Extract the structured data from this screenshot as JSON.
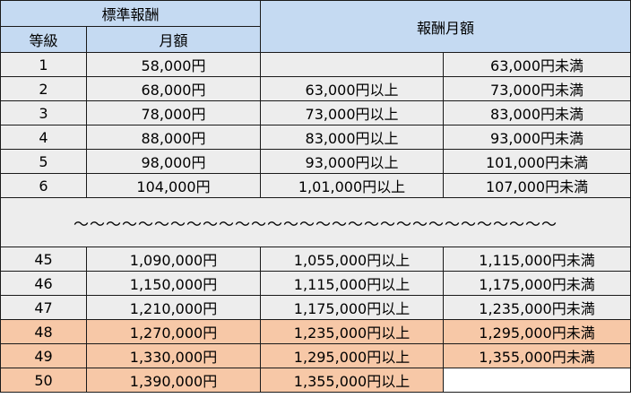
{
  "header": {
    "standard_pay": "標準報酬",
    "monthly_pay_range": "報酬月額",
    "grade": "等級",
    "monthly_amount": "月額"
  },
  "rows_top": [
    {
      "grade": "1",
      "amount": "58,000円",
      "from": "",
      "to": "63,000円未満"
    },
    {
      "grade": "2",
      "amount": "68,000円",
      "from": "63,000円以上",
      "to": "73,000円未満"
    },
    {
      "grade": "3",
      "amount": "78,000円",
      "from": "73,000円以上",
      "to": "83,000円未満"
    },
    {
      "grade": "4",
      "amount": "88,000円",
      "from": "83,000円以上",
      "to": "93,000円未満"
    },
    {
      "grade": "5",
      "amount": "98,000円",
      "from": "93,000円以上",
      "to": "101,000円未満"
    },
    {
      "grade": "6",
      "amount": "104,000円",
      "from": "1,01,000円以上",
      "to": "107,000円未満"
    }
  ],
  "ellipsis": "～～～～～～～～～～～～～～～～～～～～～～～～～～～～～～",
  "rows_bottom": [
    {
      "grade": "45",
      "amount": "1,090,000円",
      "from": "1,055,000円以上",
      "to": "1,115,000円未満"
    },
    {
      "grade": "46",
      "amount": "1,150,000円",
      "from": "1,115,000円以上",
      "to": "1,175,000円未満"
    },
    {
      "grade": "47",
      "amount": "1,210,000円",
      "from": "1,175,000円以上",
      "to": "1,235,000円未満"
    },
    {
      "grade": "48",
      "amount": "1,270,000円",
      "from": "1,235,000円以上",
      "to": "1,295,000円未満"
    },
    {
      "grade": "49",
      "amount": "1,330,000円",
      "from": "1,295,000円以上",
      "to": "1,355,000円未満"
    },
    {
      "grade": "50",
      "amount": "1,390,000円",
      "from": "1,355,000円以上",
      "to": ""
    }
  ],
  "colors": {
    "header": "#c5daf2",
    "row": "#ededed",
    "highlight": "#f7c8a7"
  }
}
